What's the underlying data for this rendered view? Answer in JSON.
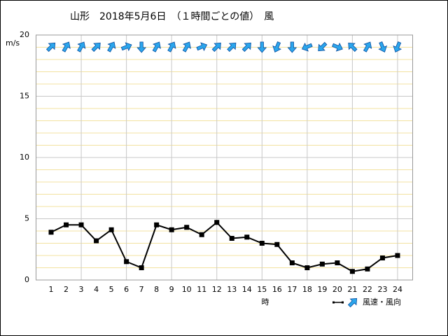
{
  "chart_data": {
    "type": "line",
    "title": "山形　2018年5月6日　（１時間ごとの値）　風",
    "y_label": "m/s",
    "x_label": "時",
    "legend_label": "風速・風向",
    "x": [
      1,
      2,
      3,
      4,
      5,
      6,
      7,
      8,
      9,
      10,
      11,
      12,
      13,
      14,
      15,
      16,
      17,
      18,
      19,
      20,
      21,
      22,
      23,
      24
    ],
    "series": [
      {
        "name": "風速",
        "color": "#000000",
        "values": [
          3.9,
          4.5,
          4.5,
          3.2,
          4.1,
          1.5,
          1.0,
          4.5,
          4.1,
          4.3,
          3.7,
          4.7,
          3.4,
          3.5,
          3.0,
          2.9,
          1.4,
          1.0,
          1.3,
          1.4,
          0.7,
          0.9,
          1.8,
          2.0
        ]
      }
    ],
    "wind_arrow_angles": [
      45,
      30,
      30,
      45,
      30,
      67.5,
      180,
      30,
      30,
      30,
      67.5,
      45,
      45,
      45,
      180,
      202.5,
      180,
      247.5,
      225,
      112.5,
      315,
      30,
      157.5,
      202.5
    ],
    "arrow_color": "#2ba6ec",
    "xlim": [
      0,
      25
    ],
    "xticks": [
      1,
      2,
      3,
      4,
      5,
      6,
      7,
      8,
      9,
      10,
      11,
      12,
      13,
      14,
      15,
      16,
      17,
      18,
      19,
      20,
      21,
      22,
      23,
      24
    ],
    "ylim": [
      0,
      20
    ],
    "yticks": [
      0,
      5,
      10,
      15,
      20
    ],
    "grid": true,
    "x_grid_step": 3,
    "y_minor_grid_step": 1,
    "grid_color": "#c8c8c8",
    "minor_grid_color": "#f3e3a0"
  }
}
